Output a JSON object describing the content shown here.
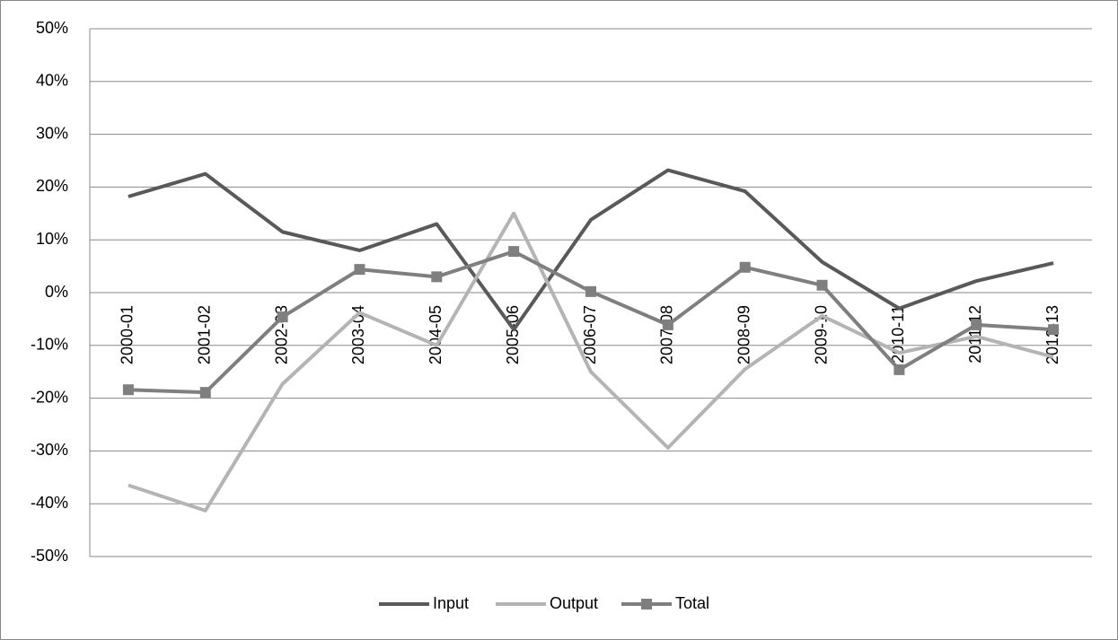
{
  "chart_data": {
    "type": "line",
    "categories": [
      "2000-01",
      "2001-02",
      "2002-03",
      "2003-04",
      "2004-05",
      "2005-06",
      "2006-07",
      "2007-08",
      "2008-09",
      "2009-10",
      "2010-11",
      "2011-12",
      "2012-13"
    ],
    "series": [
      {
        "name": "Input",
        "color": "#595959",
        "marker": "none",
        "values": [
          18.2,
          22.5,
          11.5,
          8,
          13,
          -7,
          13.8,
          23.2,
          19.2,
          5.8,
          -3,
          2.2,
          5.6
        ]
      },
      {
        "name": "Output",
        "color": "#b4b4b4",
        "marker": "none",
        "values": [
          -36.5,
          -41.3,
          -17.3,
          -3.8,
          -10,
          15,
          -15,
          -29.4,
          -14.5,
          -4.4,
          -11.4,
          -8.3,
          -12.2
        ]
      },
      {
        "name": "Total",
        "color": "#7f7f7f",
        "marker": "square",
        "values": [
          -18.4,
          -18.9,
          -4.6,
          4.4,
          3,
          7.8,
          0.2,
          -6.1,
          4.8,
          1.4,
          -14.6,
          -6.1,
          -7
        ]
      }
    ],
    "ylim": [
      -50,
      50
    ],
    "yticks": [
      {
        "value": -50,
        "label": "-50%"
      },
      {
        "value": -40,
        "label": "-40%"
      },
      {
        "value": -30,
        "label": "-30%"
      },
      {
        "value": -20,
        "label": "-20%"
      },
      {
        "value": -10,
        "label": "-10%"
      },
      {
        "value": 0,
        "label": "0%"
      },
      {
        "value": 10,
        "label": "10%"
      },
      {
        "value": 20,
        "label": "20%"
      },
      {
        "value": 30,
        "label": "30%"
      },
      {
        "value": 40,
        "label": "40%"
      },
      {
        "value": 50,
        "label": "50%"
      }
    ],
    "grid": true,
    "legend": "bottom"
  }
}
